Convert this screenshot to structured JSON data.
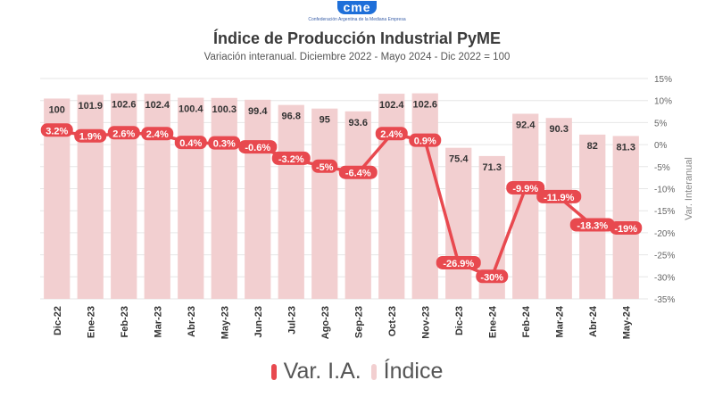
{
  "logo": {
    "mark_text": "cme",
    "tagline": "Confederación Argentina de la Mediana Empresa"
  },
  "chart_data": {
    "type": "bar+line",
    "title": "Índice de Producción Industrial PyME",
    "subtitle": "Variación interanual. Diciembre 2022 - Mayo 2024 - Dic 2022 = 100",
    "categories": [
      "Dic-22",
      "Ene-23",
      "Feb-23",
      "Mar-23",
      "Abr-23",
      "May-23",
      "Jun-23",
      "Jul-23",
      "Ago-23",
      "Sep-23",
      "Oct-23",
      "Nov-23",
      "Dic-23",
      "Ene-24",
      "Feb-24",
      "Mar-24",
      "Abr-24",
      "May-24"
    ],
    "series": [
      {
        "name": "Índice",
        "kind": "bar",
        "axis": "left",
        "color": "#f2cfd0",
        "values": [
          100,
          101.9,
          102.6,
          102.4,
          100.4,
          100.3,
          99.4,
          96.8,
          95,
          93.6,
          102.4,
          102.6,
          75.4,
          71.3,
          92.4,
          90.3,
          82,
          81.3
        ],
        "labels": [
          "100",
          "101.9",
          "102.6",
          "102.4",
          "100.4",
          "100.3",
          "99.4",
          "96.8",
          "95",
          "93.6",
          "102.4",
          "102.6",
          "75.4",
          "71.3",
          "92.4",
          "90.3",
          "82",
          "81.3"
        ]
      },
      {
        "name": "Var. I.A.",
        "kind": "line",
        "axis": "right",
        "color": "#e8494f",
        "values": [
          3.2,
          1.9,
          2.6,
          2.4,
          0.4,
          0.3,
          -0.6,
          -3.2,
          -5,
          -6.4,
          2.4,
          0.9,
          -26.9,
          -30,
          -9.9,
          -11.9,
          -18.3,
          -19
        ],
        "labels": [
          "3.2%",
          "1.9%",
          "2.6%",
          "2.4%",
          "0.4%",
          "0.3%",
          "-0.6%",
          "-3.2%",
          "-5%",
          "-6.4%",
          "2.4%",
          "0.9%",
          "-26.9%",
          "-30%",
          "-9.9%",
          "-11.9%",
          "-18.3%",
          "-19%"
        ]
      }
    ],
    "left_axis_range": [
      0,
      110
    ],
    "right_axis": {
      "label": "Var. Interanual",
      "range": [
        -35,
        15
      ],
      "ticks": [
        15,
        10,
        5,
        0,
        -5,
        -10,
        -15,
        -20,
        -25,
        -30,
        -35
      ],
      "tick_labels": [
        "15%",
        "10%",
        "5%",
        "0%",
        "-5%",
        "-10%",
        "-15%",
        "-20%",
        "-25%",
        "-30%",
        "-35%"
      ]
    },
    "grid": true,
    "legend": [
      "Var. I.A.",
      "Índice"
    ],
    "legend_position": "bottom"
  }
}
